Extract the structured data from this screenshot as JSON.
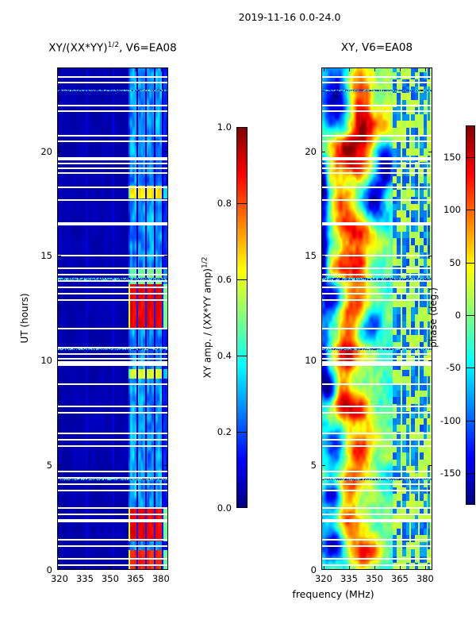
{
  "figure": {
    "suptitle": "2019-11-16 0.0-24.0",
    "background": "#ffffff",
    "text_color": "#000000"
  },
  "axes_labels": {
    "y_left": "UT (hours)",
    "x_bottom": "frequency (MHz)"
  },
  "chart_data": [
    {
      "id": "xy-amplitude-ratio",
      "type": "heatmap",
      "title": {
        "prefix": "XY/(XX*YY)",
        "sup": "1/2",
        "suffix": ", V6=EA08"
      },
      "ylabel": "UT (hours)",
      "xlabel": "",
      "colormap": "jet",
      "grid": false,
      "x_range": [
        318.6,
        384.3
      ],
      "y_range": [
        0,
        24
      ],
      "x_ticks": [
        320,
        335,
        350,
        365,
        380
      ],
      "y_ticks": [
        0,
        5,
        10,
        15,
        20
      ],
      "colorbar": {
        "range": [
          0,
          1
        ],
        "ticks": [
          {
            "v": 1.0,
            "label": "1.0"
          },
          {
            "v": 0.8,
            "label": "0.8"
          },
          {
            "v": 0.6,
            "label": "0.6"
          },
          {
            "v": 0.4,
            "label": "0.4"
          },
          {
            "v": 0.2,
            "label": "0.2"
          },
          {
            "v": 0.0,
            "label": "0.0"
          }
        ],
        "label": {
          "text": "XY amp. / (XX*YY amp)",
          "sup": "1/2"
        }
      },
      "features": {
        "background_level": 0.04,
        "subband_edges": [
          336,
          352,
          368
        ],
        "rfi_band": {
          "f_start": 360.8,
          "f_end": 384.3,
          "base_level": 0.3
        },
        "band_column_separators": [
          366.0,
          371.2,
          376.4,
          381.2
        ],
        "red_blocks": [
          {
            "t0": 11.55,
            "t1": 13.65,
            "v": 0.85
          },
          {
            "t0": 13.65,
            "t1": 14.45,
            "v": 0.45
          },
          {
            "t0": 1.35,
            "t1": 3.0,
            "v": 0.85
          },
          {
            "t0": 0.0,
            "t1": 0.95,
            "v": 0.8
          },
          {
            "t0": 17.75,
            "t1": 18.35,
            "v": 0.6
          },
          {
            "t0": 9.15,
            "t1": 9.6,
            "v": 0.55
          }
        ]
      }
    },
    {
      "id": "xy-phase",
      "type": "heatmap",
      "title": {
        "prefix": "XY, V6=EA08",
        "sup": "",
        "suffix": ""
      },
      "ylabel": "",
      "xlabel": "frequency (MHz)",
      "colormap": "jet",
      "grid": false,
      "x_range": [
        318.6,
        384.3
      ],
      "y_range": [
        0,
        24
      ],
      "x_ticks": [
        320,
        335,
        350,
        365,
        380
      ],
      "y_ticks": [
        0,
        5,
        10,
        15,
        20
      ],
      "colorbar": {
        "range": [
          -180,
          180
        ],
        "ticks": [
          {
            "v": 150,
            "label": "150"
          },
          {
            "v": 100,
            "label": "100"
          },
          {
            "v": 50,
            "label": "50"
          },
          {
            "v": 0,
            "label": "0"
          },
          {
            "v": -50,
            "label": "-50"
          },
          {
            "v": -100,
            "label": "-100"
          },
          {
            "v": -150,
            "label": "-150"
          }
        ],
        "label": {
          "text": "phase (deg.)",
          "sup": ""
        }
      },
      "features": {
        "base_phase": 30,
        "edge_strip": {
          "f_start": 383.0,
          "v": 28
        },
        "rfi_band": {
          "f_start": 360.8,
          "cell_df": 2.6,
          "cell_dt": 0.33
        },
        "band_column_separators": [
          366.0,
          371.2,
          376.4,
          381.2
        ],
        "blobs": [
          {
            "f": 326,
            "t": 22.5,
            "sf": 5,
            "st": 1.2,
            "v": -170
          },
          {
            "f": 342,
            "t": 22.3,
            "sf": 6,
            "st": 1.5,
            "v": 150
          },
          {
            "f": 352,
            "t": 21.0,
            "sf": 8,
            "st": 0.8,
            "v": 120
          },
          {
            "f": 332,
            "t": 20.3,
            "sf": 8,
            "st": 0.5,
            "v": 140
          },
          {
            "f": 356,
            "t": 19.6,
            "sf": 4,
            "st": 0.9,
            "v": -150
          },
          {
            "f": 338,
            "t": 19.3,
            "sf": 10,
            "st": 0.5,
            "v": 130
          },
          {
            "f": 320,
            "t": 18.5,
            "sf": 2,
            "st": 1.0,
            "v": -130
          },
          {
            "f": 330,
            "t": 17.3,
            "sf": 6,
            "st": 0.9,
            "v": 150
          },
          {
            "f": 350,
            "t": 17.6,
            "sf": 4,
            "st": 0.8,
            "v": -150
          },
          {
            "f": 340,
            "t": 16.2,
            "sf": 8,
            "st": 0.5,
            "v": 120
          },
          {
            "f": 320,
            "t": 15.2,
            "sf": 2,
            "st": 1.6,
            "v": -150
          },
          {
            "f": 335,
            "t": 14.7,
            "sf": 9,
            "st": 0.7,
            "v": 130
          },
          {
            "f": 326,
            "t": 13.1,
            "sf": 4,
            "st": 0.5,
            "v": -160
          },
          {
            "f": 338,
            "t": 12.4,
            "sf": 8,
            "st": 1.1,
            "v": 150
          },
          {
            "f": 347,
            "t": 11.6,
            "sf": 5,
            "st": 0.6,
            "v": -140
          },
          {
            "f": 336,
            "t": 10.3,
            "sf": 9,
            "st": 0.6,
            "v": 140
          },
          {
            "f": 320,
            "t": 9.8,
            "sf": 2,
            "st": 1.2,
            "v": -140
          },
          {
            "f": 330,
            "t": 8.4,
            "sf": 5,
            "st": 0.8,
            "v": 150
          },
          {
            "f": 324,
            "t": 8.6,
            "sf": 3,
            "st": 0.5,
            "v": -160
          },
          {
            "f": 340,
            "t": 7.7,
            "sf": 7,
            "st": 0.5,
            "v": 130
          },
          {
            "f": 327,
            "t": 6.0,
            "sf": 4,
            "st": 0.7,
            "v": -150
          },
          {
            "f": 342,
            "t": 5.9,
            "sf": 8,
            "st": 0.9,
            "v": 140
          },
          {
            "f": 335,
            "t": 4.0,
            "sf": 8,
            "st": 0.6,
            "v": 130
          },
          {
            "f": 326,
            "t": 3.6,
            "sf": 4,
            "st": 0.4,
            "v": -150
          },
          {
            "f": 338,
            "t": 2.2,
            "sf": 8,
            "st": 0.8,
            "v": 140
          },
          {
            "f": 328,
            "t": 1.2,
            "sf": 5,
            "st": 0.5,
            "v": -140
          },
          {
            "f": 345,
            "t": 0.7,
            "sf": 8,
            "st": 0.5,
            "v": 130
          }
        ]
      }
    }
  ],
  "shared_features": {
    "seed": 7,
    "gap_rows_hours": [
      [
        23.55,
        0.1
      ],
      [
        23.28,
        0.1
      ],
      [
        22.18,
        0.1
      ],
      [
        21.92,
        0.1
      ],
      [
        20.74,
        0.1
      ],
      [
        20.47,
        0.1
      ],
      [
        19.64,
        0.12
      ],
      [
        19.41,
        0.1
      ],
      [
        19.18,
        0.1
      ],
      [
        18.96,
        0.1
      ],
      [
        18.27,
        0.1
      ],
      [
        17.67,
        0.1
      ],
      [
        16.53,
        0.14
      ],
      [
        15.01,
        0.1
      ],
      [
        14.41,
        0.1
      ],
      [
        14.1,
        0.1
      ],
      [
        13.8,
        0.1
      ],
      [
        13.5,
        0.1
      ],
      [
        13.19,
        0.1
      ],
      [
        12.89,
        0.1
      ],
      [
        11.53,
        0.1
      ],
      [
        10.62,
        0.1
      ],
      [
        10.31,
        0.1
      ],
      [
        10.09,
        0.1
      ],
      [
        9.86,
        0.26
      ],
      [
        8.87,
        0.1
      ],
      [
        7.81,
        0.1
      ],
      [
        7.51,
        0.1
      ],
      [
        6.52,
        0.1
      ],
      [
        6.22,
        0.1
      ],
      [
        5.91,
        0.1
      ],
      [
        4.7,
        0.1
      ],
      [
        4.4,
        0.1
      ],
      [
        4.09,
        0.1
      ],
      [
        3.79,
        0.1
      ],
      [
        2.96,
        0.1
      ],
      [
        2.65,
        0.1
      ],
      [
        2.35,
        0.18
      ],
      [
        1.44,
        0.1
      ],
      [
        1.14,
        0.1
      ],
      [
        0.53,
        0.1
      ],
      [
        0.23,
        0.1
      ]
    ],
    "speckle_rows_hours": [
      22.9,
      13.9,
      10.55,
      4.35
    ]
  }
}
